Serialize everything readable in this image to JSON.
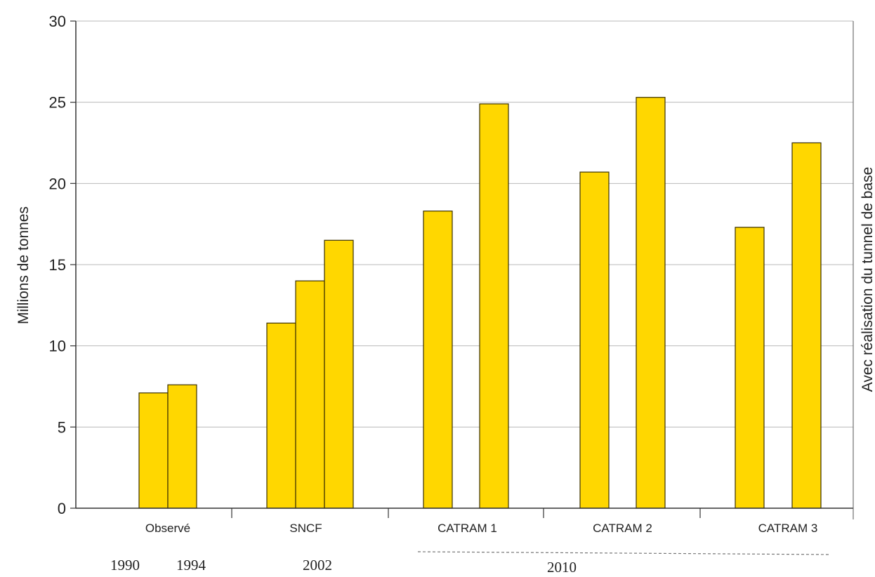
{
  "chart_data": {
    "type": "bar",
    "ylabel": "Millions de tonnes",
    "right_annotation": "Avec réalisation du tunnel de base",
    "ylim": [
      0,
      30
    ],
    "yticks": [
      0,
      5,
      10,
      15,
      20,
      25,
      30
    ],
    "grid": true,
    "groups": [
      {
        "label": "Observé",
        "values": [
          7.1,
          7.6
        ]
      },
      {
        "label": "SNCF",
        "values": [
          11.4,
          14.0,
          16.5
        ]
      },
      {
        "label": "CATRAM 1",
        "values": [
          18.3,
          24.9
        ]
      },
      {
        "label": "CATRAM 2",
        "values": [
          20.7,
          25.3
        ]
      },
      {
        "label": "CATRAM 3",
        "values": [
          17.3,
          22.5
        ]
      }
    ],
    "years": [
      "1990",
      "1994",
      "2002",
      "2010"
    ],
    "bar_color": "#FFD700",
    "bar_stroke": "#3a3000",
    "grid_color": "#b9b9b9"
  }
}
